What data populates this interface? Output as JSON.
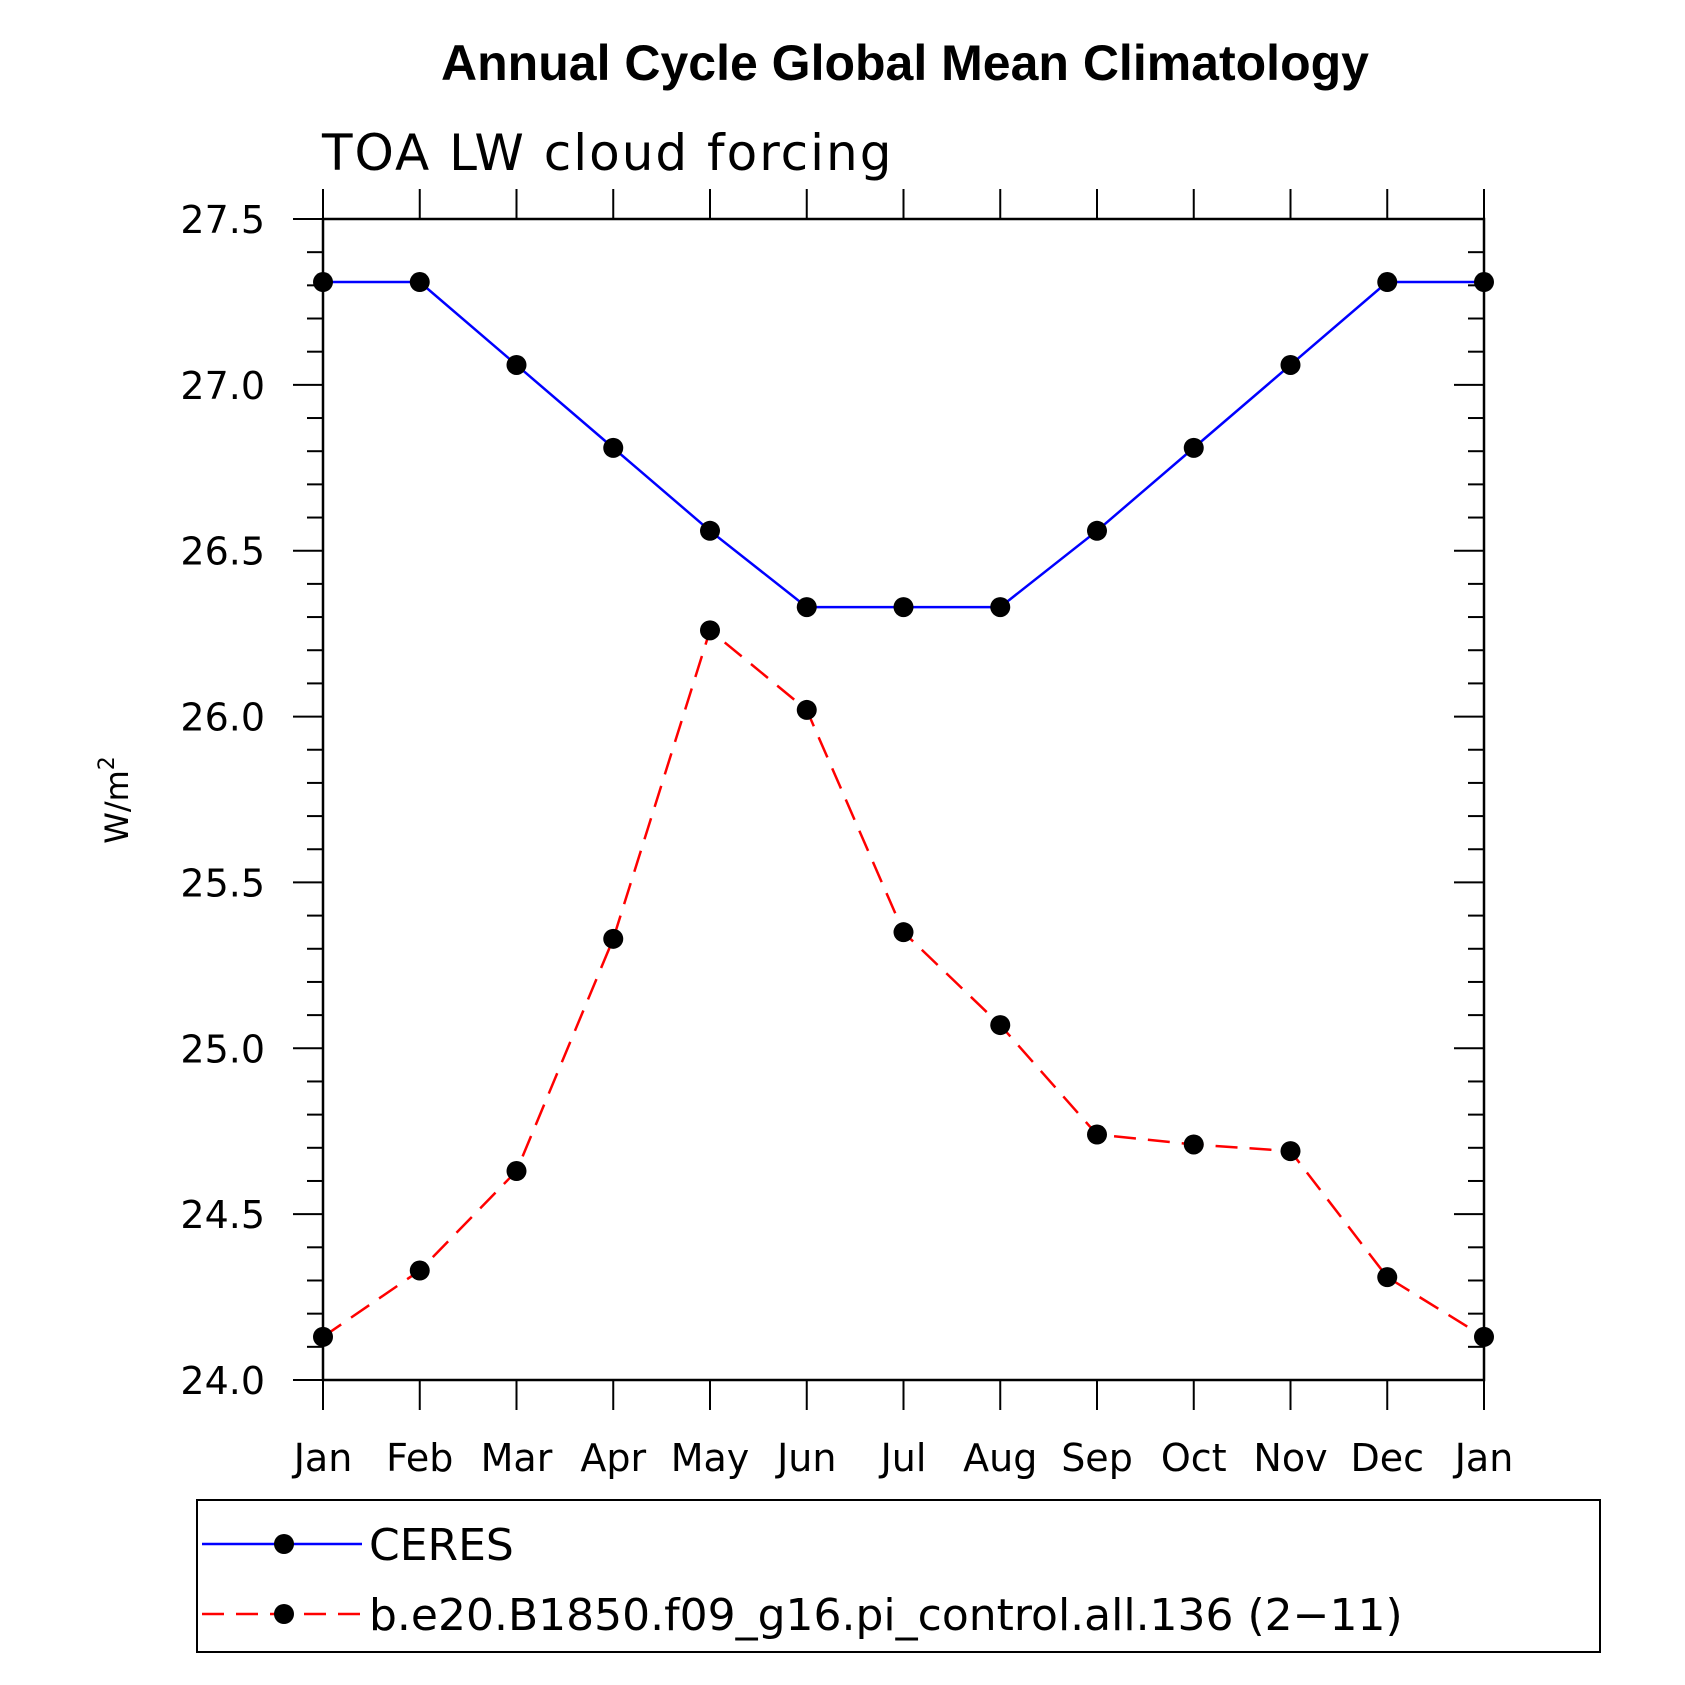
{
  "chart_data": {
    "type": "line",
    "title": "Annual Cycle Global Mean Climatology",
    "subtitle": "TOA LW cloud forcing",
    "xlabel": "",
    "ylabel": "W/m",
    "ylabel_superscript": "2",
    "categories": [
      "Jan",
      "Feb",
      "Mar",
      "Apr",
      "May",
      "Jun",
      "Jul",
      "Aug",
      "Sep",
      "Oct",
      "Nov",
      "Dec",
      "Jan"
    ],
    "ylim": [
      24.0,
      27.5
    ],
    "yticks": [
      24.0,
      24.5,
      25.0,
      25.5,
      26.0,
      26.5,
      27.0,
      27.5
    ],
    "ytick_labels": [
      "24.0",
      "24.5",
      "25.0",
      "25.5",
      "26.0",
      "26.5",
      "27.0",
      "27.5"
    ],
    "series": [
      {
        "name": "CERES",
        "color": "#0000ff",
        "dash": "solid",
        "marker_color": "#000000",
        "values": [
          27.31,
          27.31,
          27.06,
          26.81,
          26.56,
          26.33,
          26.33,
          26.33,
          26.56,
          26.81,
          27.06,
          27.31,
          27.31
        ]
      },
      {
        "name": "b.e20.B1850.f09_g16.pi_control.all.136 (2−11)",
        "color": "#ff0000",
        "dash": "dashed",
        "marker_color": "#000000",
        "values": [
          24.13,
          24.33,
          24.63,
          25.33,
          26.26,
          26.02,
          25.35,
          25.07,
          24.74,
          24.71,
          24.69,
          24.31,
          24.13
        ]
      }
    ],
    "legend_position": "bottom"
  }
}
